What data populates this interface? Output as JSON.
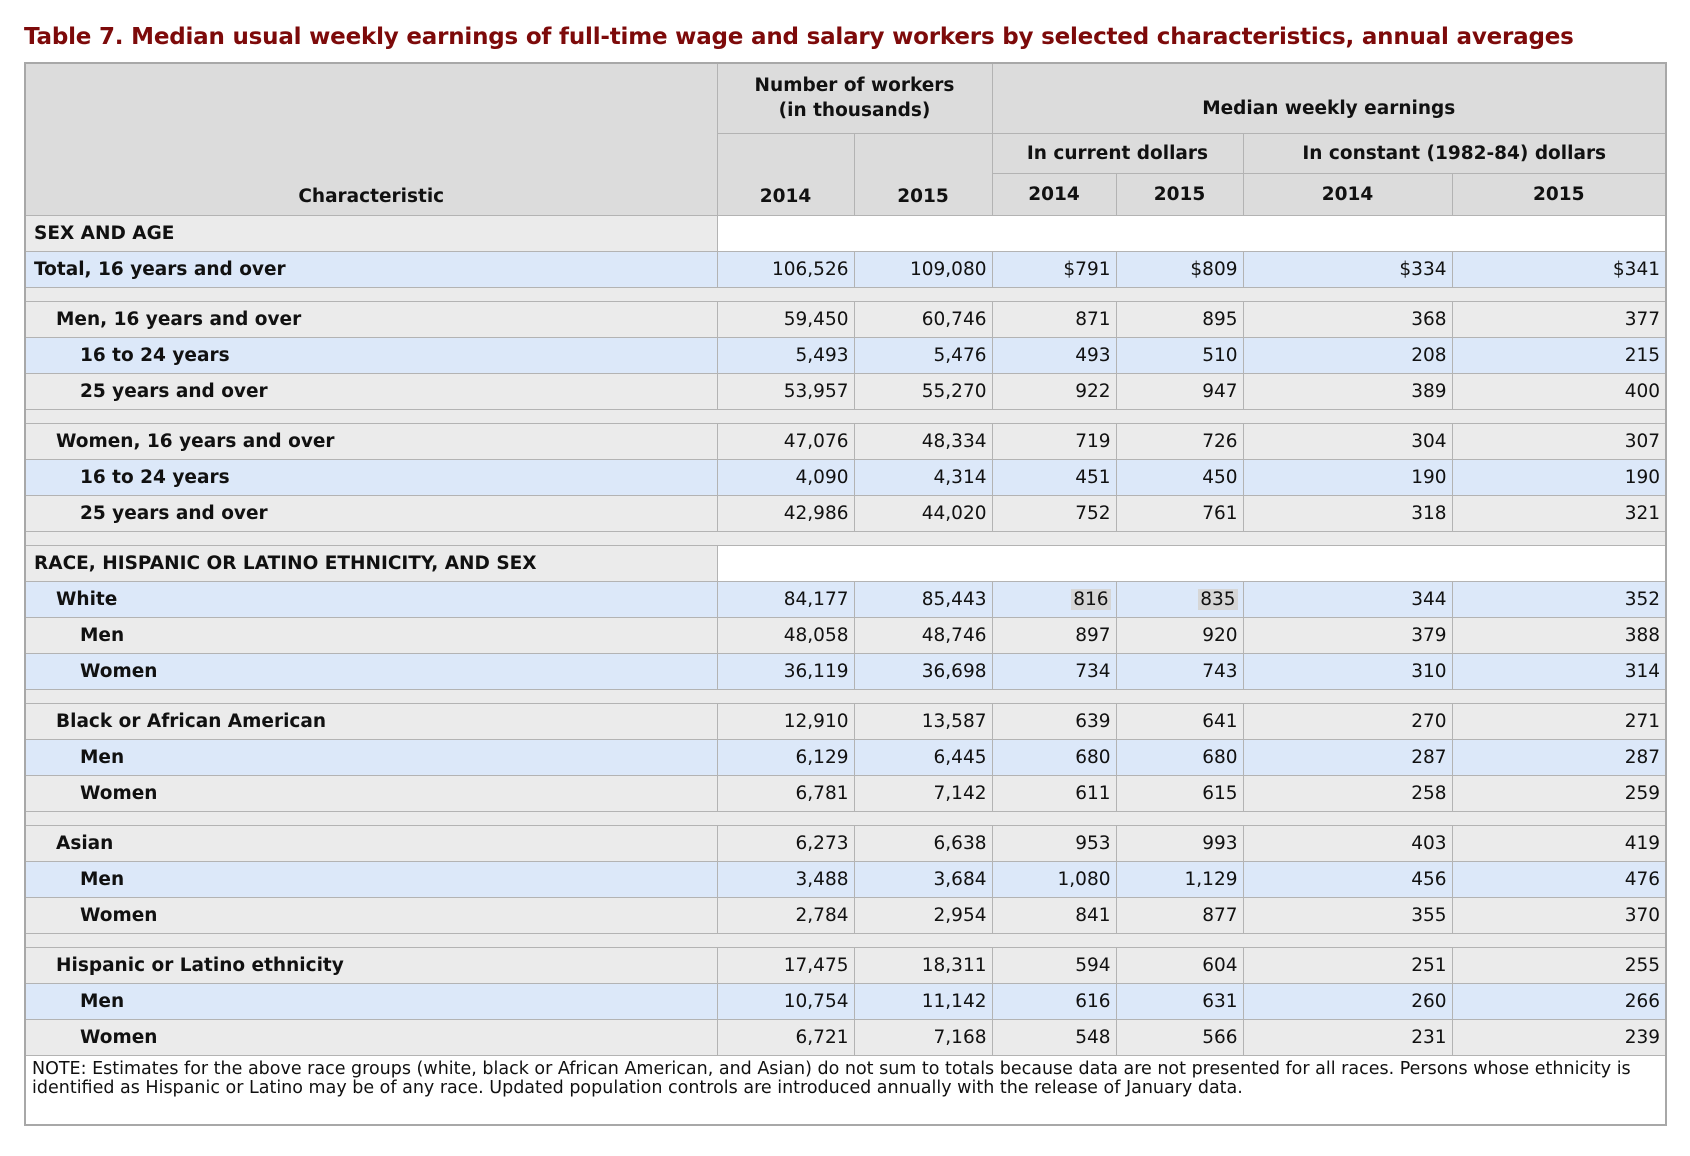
{
  "title": "Table 7. Median usual weekly earnings of full-time wage and salary workers by selected characteristics, annual averages",
  "table": {
    "headers": {
      "characteristic": "Characteristic",
      "workers": "Number of workers (in thousands)",
      "earnings": "Median weekly earnings",
      "current": "In current dollars",
      "constant": "In constant (1982-84) dollars",
      "years": [
        "2014",
        "2015",
        "2014",
        "2015",
        "2014",
        "2015"
      ]
    },
    "sections": [
      {
        "heading": "SEX AND AGE",
        "groups": [
          [
            {
              "label": "Total, 16 years and over",
              "values": [
                "106,526",
                "109,080",
                "$791",
                "$809",
                "$334",
                "$341"
              ]
            }
          ],
          [
            {
              "label": "Men, 16 years and over",
              "values": [
                "59,450",
                "60,746",
                "871",
                "895",
                "368",
                "377"
              ]
            },
            {
              "label": "16 to 24 years",
              "values": [
                "5,493",
                "5,476",
                "493",
                "510",
                "208",
                "215"
              ]
            },
            {
              "label": "25 years and over",
              "values": [
                "53,957",
                "55,270",
                "922",
                "947",
                "389",
                "400"
              ]
            }
          ],
          [
            {
              "label": "Women, 16 years and over",
              "values": [
                "47,076",
                "48,334",
                "719",
                "726",
                "304",
                "307"
              ]
            },
            {
              "label": "16 to 24 years",
              "values": [
                "4,090",
                "4,314",
                "451",
                "450",
                "190",
                "190"
              ]
            },
            {
              "label": "25 years and over",
              "values": [
                "42,986",
                "44,020",
                "752",
                "761",
                "318",
                "321"
              ]
            }
          ]
        ]
      },
      {
        "heading": "RACE, HISPANIC OR LATINO ETHNICITY, AND SEX",
        "groups": [
          [
            {
              "label": "White",
              "values": [
                "84,177",
                "85,443",
                "816",
                "835",
                "344",
                "352"
              ]
            },
            {
              "label": "Men",
              "values": [
                "48,058",
                "48,746",
                "897",
                "920",
                "379",
                "388"
              ]
            },
            {
              "label": "Women",
              "values": [
                "36,119",
                "36,698",
                "734",
                "743",
                "310",
                "314"
              ]
            }
          ],
          [
            {
              "label": "Black or African American",
              "values": [
                "12,910",
                "13,587",
                "639",
                "641",
                "270",
                "271"
              ]
            },
            {
              "label": "Men",
              "values": [
                "6,129",
                "6,445",
                "680",
                "680",
                "287",
                "287"
              ]
            },
            {
              "label": "Women",
              "values": [
                "6,781",
                "7,142",
                "611",
                "615",
                "258",
                "259"
              ]
            }
          ],
          [
            {
              "label": "Asian",
              "values": [
                "6,273",
                "6,638",
                "953",
                "993",
                "403",
                "419"
              ]
            },
            {
              "label": "Men",
              "values": [
                "3,488",
                "3,684",
                "1,080",
                "1,129",
                "456",
                "476"
              ]
            },
            {
              "label": "Women",
              "values": [
                "2,784",
                "2,954",
                "841",
                "877",
                "355",
                "370"
              ]
            }
          ],
          [
            {
              "label": "Hispanic or Latino ethnicity",
              "values": [
                "17,475",
                "18,311",
                "594",
                "604",
                "251",
                "255"
              ]
            },
            {
              "label": "Men",
              "values": [
                "10,754",
                "11,142",
                "616",
                "631",
                "260",
                "266"
              ]
            },
            {
              "label": "Women",
              "values": [
                "6,721",
                "7,168",
                "548",
                "566",
                "231",
                "239"
              ]
            }
          ]
        ]
      }
    ],
    "note": "NOTE: Estimates for the above race groups (white, black or African American, and Asian) do not sum to totals because data are not presented for all races. Persons whose ethnicity is identified as Hispanic or Latino may be of any race. Updated population controls are introduced annually with the release of January data."
  }
}
